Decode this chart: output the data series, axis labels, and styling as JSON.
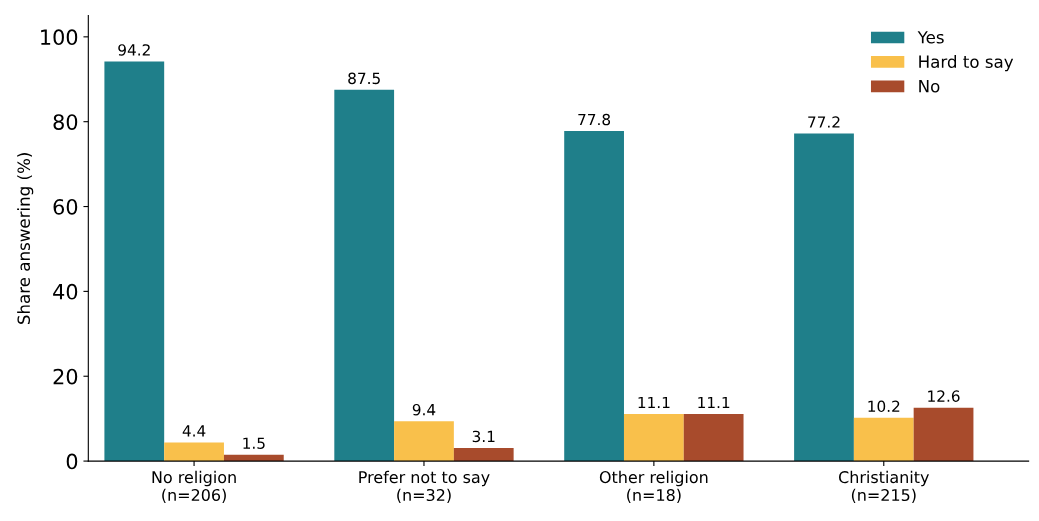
{
  "chart_data": {
    "type": "bar",
    "ylabel": "Share answering (%)",
    "categories": [
      "No religion\n(n=206)",
      "Prefer not to say\n(n=32)",
      "Other religion\n(n=18)",
      "Christianity\n(n=215)"
    ],
    "series": [
      {
        "name": "Yes",
        "color": "#1f7f8a",
        "values": [
          94.2,
          87.5,
          77.8,
          77.2
        ]
      },
      {
        "name": "Hard to say",
        "color": "#f9c04b",
        "values": [
          4.4,
          9.4,
          11.1,
          10.2
        ]
      },
      {
        "name": "No",
        "color": "#a84b2c",
        "values": [
          1.5,
          3.1,
          11.1,
          12.6
        ]
      }
    ],
    "ylim": [
      0,
      105
    ],
    "yticks": [
      0,
      20,
      40,
      60,
      80,
      100
    ],
    "data_labels": true,
    "legend": "top right",
    "grid": false
  }
}
